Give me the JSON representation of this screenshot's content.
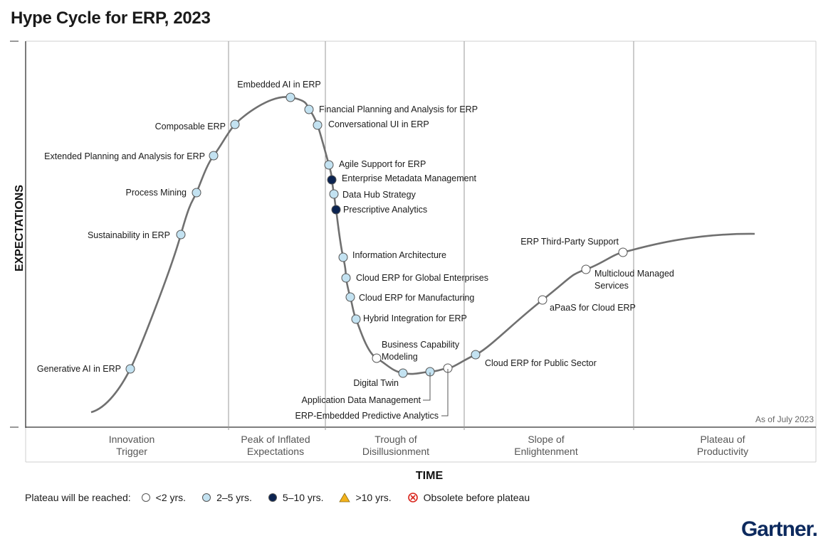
{
  "title": "Hype Cycle for ERP, 2023",
  "colors": {
    "lt2": "#ffffff",
    "y2to5": "#c3e2f1",
    "y5to10": "#0b2350",
    "gt10": "#f3b21b",
    "obsolete": "#d9241b",
    "curve": "#707070"
  },
  "axes": {
    "y_label": "EXPECTATIONS",
    "x_label": "TIME"
  },
  "as_of": "As of July 2023",
  "phases": [
    {
      "line1": "Innovation",
      "line2": "Trigger"
    },
    {
      "line1": "Peak of Inflated",
      "line2": "Expectations"
    },
    {
      "line1": "Trough of",
      "line2": "Disillusionment"
    },
    {
      "line1": "Slope of",
      "line2": "Enlightenment"
    },
    {
      "line1": "Plateau of",
      "line2": "Productivity"
    }
  ],
  "technologies": [
    {
      "name": "Generative AI in ERP",
      "plateau": "2-5"
    },
    {
      "name": "Sustainability in ERP",
      "plateau": "2-5"
    },
    {
      "name": "Process Mining",
      "plateau": "2-5"
    },
    {
      "name": "Extended Planning and Analysis for ERP",
      "plateau": "2-5"
    },
    {
      "name": "Composable ERP",
      "plateau": "2-5"
    },
    {
      "name": "Embedded AI in ERP",
      "plateau": "2-5"
    },
    {
      "name": "Financial Planning and Analysis for ERP",
      "plateau": "2-5"
    },
    {
      "name": "Conversational UI in ERP",
      "plateau": "2-5"
    },
    {
      "name": "Agile Support for ERP",
      "plateau": "2-5"
    },
    {
      "name": "Enterprise Metadata Management",
      "plateau": "5-10"
    },
    {
      "name": "Data Hub Strategy",
      "plateau": "2-5"
    },
    {
      "name": "Prescriptive Analytics",
      "plateau": "5-10"
    },
    {
      "name": "Information Architecture",
      "plateau": "2-5"
    },
    {
      "name": "Cloud ERP for Global Enterprises",
      "plateau": "2-5"
    },
    {
      "name": "Cloud ERP for Manufacturing",
      "plateau": "2-5"
    },
    {
      "name": "Hybrid Integration for ERP",
      "plateau": "2-5"
    },
    {
      "name": "Business Capability Modeling",
      "plateau": "<2"
    },
    {
      "name": "Digital Twin",
      "plateau": "2-5"
    },
    {
      "name": "Application Data Management",
      "plateau": "2-5"
    },
    {
      "name": "ERP-Embedded Predictive Analytics",
      "plateau": "<2"
    },
    {
      "name": "Cloud ERP for Public Sector",
      "plateau": "2-5"
    },
    {
      "name": "aPaaS for Cloud ERP",
      "plateau": "<2"
    },
    {
      "name": "Multicloud Managed Services",
      "plateau": "<2"
    },
    {
      "name": "ERP Third-Party Support",
      "plateau": "<2"
    }
  ],
  "legend": {
    "intro": "Plateau will be reached:",
    "items": [
      {
        "key": "<2",
        "label": "<2 yrs.",
        "icon": "circle-white"
      },
      {
        "key": "2-5",
        "label": "2–5 yrs.",
        "icon": "circle-light-blue"
      },
      {
        "key": "5-10",
        "label": "5–10 yrs.",
        "icon": "circle-dark-blue"
      },
      {
        "key": ">10",
        "label": ">10 yrs.",
        "icon": "triangle-yellow"
      },
      {
        "key": "obsolete",
        "label": "Obsolete before plateau",
        "icon": "circle-x-red"
      }
    ]
  },
  "brand": "Gartner."
}
